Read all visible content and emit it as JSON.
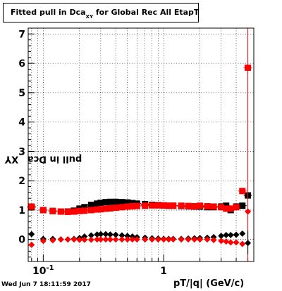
{
  "title_main": "Fitted pull in Dca",
  "title_sub": "XY",
  "title_rest": " for Global Rec All EtapT",
  "ylabel_main": "pull in Dca",
  "ylabel_sub": "XY",
  "xlabel": "pT/|q| (GeV/c)",
  "datestamp": "Wed Jun  7 18:11:59 2017",
  "colors": {
    "black_series": "#000000",
    "red_series": "#ff0000"
  },
  "chart_data": {
    "type": "scatter",
    "x_scale": "log",
    "xlim": [
      0.075,
      5.6
    ],
    "ylim": [
      -0.75,
      7.2
    ],
    "grid": true,
    "xticks": [
      {
        "value": 0.1,
        "label": "10",
        "sup": "-1"
      },
      {
        "value": 1,
        "label": "1",
        "sup": ""
      }
    ],
    "yticks": [
      0,
      1,
      2,
      3,
      4,
      5,
      6,
      7
    ],
    "series": [
      {
        "marker": "square",
        "color": "black",
        "x": [
          0.08,
          0.1,
          0.12,
          0.14,
          0.16,
          0.18,
          0.2,
          0.22,
          0.25,
          0.28,
          0.3,
          0.33,
          0.36,
          0.4,
          0.45,
          0.5,
          0.55,
          0.6,
          0.7,
          0.8,
          0.9,
          1.0,
          1.1,
          1.2,
          1.4,
          1.6,
          1.8,
          2.0,
          2.3,
          2.6,
          3.0,
          3.3,
          3.6,
          4.0,
          4.5,
          5.0
        ],
        "y": [
          1.1,
          1.0,
          0.97,
          0.95,
          0.95,
          0.98,
          1.05,
          1.1,
          1.18,
          1.22,
          1.25,
          1.27,
          1.28,
          1.28,
          1.27,
          1.26,
          1.24,
          1.22,
          1.2,
          1.18,
          1.17,
          1.16,
          1.15,
          1.15,
          1.14,
          1.13,
          1.12,
          1.12,
          1.1,
          1.1,
          1.12,
          1.15,
          1.0,
          1.12,
          1.15,
          1.5
        ]
      },
      {
        "marker": "square",
        "color": "red",
        "x": [
          0.08,
          0.1,
          0.12,
          0.14,
          0.16,
          0.18,
          0.2,
          0.22,
          0.25,
          0.28,
          0.3,
          0.33,
          0.36,
          0.4,
          0.45,
          0.5,
          0.55,
          0.6,
          0.7,
          0.8,
          0.9,
          1.0,
          1.1,
          1.2,
          1.4,
          1.6,
          1.8,
          2.0,
          2.3,
          2.6,
          3.0,
          3.3,
          3.6,
          4.0,
          4.5,
          5.0
        ],
        "y": [
          1.12,
          1.0,
          0.97,
          0.95,
          0.94,
          0.95,
          0.97,
          0.98,
          1.0,
          1.02,
          1.03,
          1.05,
          1.06,
          1.08,
          1.1,
          1.12,
          1.13,
          1.14,
          1.15,
          1.16,
          1.16,
          1.16,
          1.15,
          1.15,
          1.15,
          1.14,
          1.13,
          1.15,
          1.13,
          1.12,
          1.1,
          1.05,
          1.05,
          1.1,
          1.65,
          5.85
        ]
      },
      {
        "marker": "diamond",
        "color": "black",
        "x": [
          0.08,
          0.1,
          0.12,
          0.14,
          0.16,
          0.18,
          0.2,
          0.22,
          0.25,
          0.28,
          0.3,
          0.33,
          0.36,
          0.4,
          0.45,
          0.5,
          0.55,
          0.6,
          0.7,
          0.8,
          0.9,
          1.0,
          1.1,
          1.2,
          1.4,
          1.6,
          1.8,
          2.0,
          2.3,
          2.6,
          3.0,
          3.3,
          3.6,
          4.0,
          4.5,
          5.0
        ],
        "y": [
          0.18,
          0.02,
          0.02,
          0.0,
          0.0,
          0.02,
          0.05,
          0.1,
          0.14,
          0.17,
          0.18,
          0.18,
          0.17,
          0.16,
          0.14,
          0.12,
          0.1,
          0.08,
          0.06,
          0.04,
          0.03,
          0.02,
          0.02,
          0.02,
          0.02,
          0.03,
          0.04,
          0.05,
          0.06,
          0.08,
          0.12,
          0.15,
          0.15,
          0.16,
          0.2,
          -0.12
        ]
      },
      {
        "marker": "diamond",
        "color": "red",
        "x": [
          0.08,
          0.1,
          0.12,
          0.14,
          0.16,
          0.18,
          0.2,
          0.22,
          0.25,
          0.28,
          0.3,
          0.33,
          0.36,
          0.4,
          0.45,
          0.5,
          0.55,
          0.6,
          0.7,
          0.8,
          0.9,
          1.0,
          1.1,
          1.2,
          1.4,
          1.6,
          1.8,
          2.0,
          2.3,
          2.6,
          3.0,
          3.3,
          3.6,
          4.0,
          4.5,
          5.0
        ],
        "y": [
          -0.18,
          -0.05,
          -0.03,
          0.0,
          0.0,
          0.0,
          -0.01,
          -0.01,
          -0.01,
          0.0,
          0.0,
          0.0,
          0.0,
          0.0,
          0.0,
          0.0,
          0.0,
          0.0,
          0.0,
          0.0,
          0.0,
          0.0,
          0.0,
          0.0,
          0.0,
          0.0,
          0.0,
          0.0,
          0.0,
          -0.02,
          -0.05,
          -0.07,
          -0.1,
          -0.1,
          -0.15,
          0.95
        ]
      }
    ]
  }
}
